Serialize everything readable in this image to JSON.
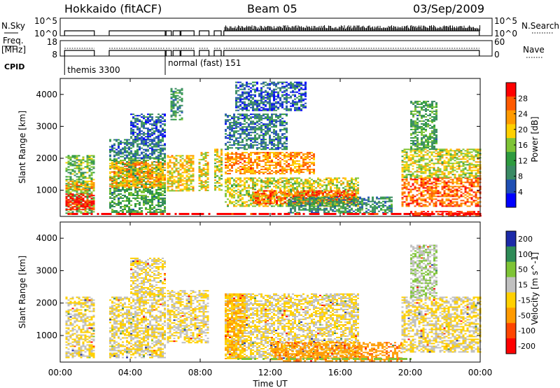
{
  "header": {
    "station": "Hokkaido (fitACF)",
    "beam": "Beam 05",
    "date": "03/Sep/2009"
  },
  "sky_panel": {
    "left_label": "N.Sky",
    "right_label": "N.Search",
    "left_ticks": [
      "10^5",
      "10^0"
    ],
    "right_ticks": [
      "10^5",
      "10^0"
    ]
  },
  "freq_panel": {
    "left_label_1": "Freq.",
    "left_label_2": "[MHz]",
    "right_label": "Nave",
    "left_ticks": [
      "18",
      "8"
    ],
    "right_ticks": [
      "60",
      "0"
    ]
  },
  "cpid_panel": {
    "label": "CPID",
    "modes": [
      {
        "name": "themis 3300",
        "start_hour": 0.25
      },
      {
        "name": "normal (fast) 151",
        "start_hour": 6.0
      }
    ]
  },
  "operation": {
    "intervals": [
      [
        0.25,
        1.95
      ],
      [
        2.8,
        6.0
      ],
      [
        6.05,
        6.35
      ],
      [
        6.45,
        6.85
      ],
      [
        6.9,
        7.65
      ],
      [
        7.95,
        8.5
      ],
      [
        8.8,
        9.2
      ],
      [
        9.35,
        23.95
      ]
    ]
  },
  "colors": {
    "power": [
      "#0000ff",
      "#1f4fb4",
      "#3a8a64",
      "#2e9b3f",
      "#7ec436",
      "#ffd000",
      "#ff9a00",
      "#ff5a00",
      "#ff0000"
    ],
    "velocity": [
      "#1c2aa8",
      "#2e8b57",
      "#7ec436",
      "#c0c0c0",
      "#ffd000",
      "#ff9a00",
      "#ff4500",
      "#ff0000"
    ],
    "grey": "#c0c0c0"
  },
  "chart_data": [
    {
      "type": "heatmap",
      "name": "power",
      "ylabel": "Slant Range [km]",
      "xlabel": "Time UT",
      "x_ticks": [
        "00:00",
        "04:00",
        "08:00",
        "12:00",
        "16:00",
        "20:00",
        "00:00"
      ],
      "x_range_hours": [
        0,
        24
      ],
      "y_ticks": [
        "1000",
        "2000",
        "3000",
        "4000"
      ],
      "ylim_km": [
        180,
        4500
      ],
      "colorbar": {
        "label": "Power [dB]",
        "range": [
          0,
          32
        ],
        "ticks": [
          "4",
          "8",
          "12",
          "16",
          "20",
          "24",
          "28"
        ]
      },
      "regions": [
        {
          "x": [
            0.3,
            1.9
          ],
          "y": [
            300,
            2100
          ],
          "value": 14
        },
        {
          "x": [
            0.3,
            1.9
          ],
          "y": [
            400,
            900
          ],
          "value": 30
        },
        {
          "x": [
            0.3,
            1.9
          ],
          "y": [
            1000,
            1300
          ],
          "value": 22
        },
        {
          "x": [
            2.8,
            6.0
          ],
          "y": [
            300,
            2000
          ],
          "value": 12
        },
        {
          "x": [
            2.8,
            6.0
          ],
          "y": [
            1100,
            1900
          ],
          "value": 22
        },
        {
          "x": [
            2.8,
            6.0
          ],
          "y": [
            2000,
            2600
          ],
          "value": 8
        },
        {
          "x": [
            4.0,
            6.0
          ],
          "y": [
            2600,
            3400
          ],
          "value": 6
        },
        {
          "x": [
            6.1,
            7.6
          ],
          "y": [
            1000,
            2100
          ],
          "value": 20
        },
        {
          "x": [
            6.3,
            7.0
          ],
          "y": [
            3200,
            4200
          ],
          "value": 10
        },
        {
          "x": [
            7.9,
            8.5
          ],
          "y": [
            1000,
            2200
          ],
          "value": 20
        },
        {
          "x": [
            8.8,
            9.2
          ],
          "y": [
            1000,
            2300
          ],
          "value": 18
        },
        {
          "x": [
            9.4,
            14.5
          ],
          "y": [
            1500,
            2200
          ],
          "value": 24
        },
        {
          "x": [
            9.4,
            17.0
          ],
          "y": [
            500,
            1400
          ],
          "value": 18
        },
        {
          "x": [
            11.0,
            17.0
          ],
          "y": [
            600,
            1000
          ],
          "value": 26
        },
        {
          "x": [
            13.0,
            19.0
          ],
          "y": [
            300,
            800
          ],
          "value": 10
        },
        {
          "x": [
            9.4,
            13.0
          ],
          "y": [
            2300,
            3400
          ],
          "value": 8
        },
        {
          "x": [
            10.0,
            14.0
          ],
          "y": [
            3500,
            4400
          ],
          "value": 6
        },
        {
          "x": [
            19.5,
            24.0
          ],
          "y": [
            500,
            1400
          ],
          "value": 26
        },
        {
          "x": [
            19.5,
            24.0
          ],
          "y": [
            1400,
            2300
          ],
          "value": 18
        },
        {
          "x": [
            20.0,
            21.5
          ],
          "y": [
            2300,
            3800
          ],
          "value": 12
        },
        {
          "x": [
            20.0,
            24.0
          ],
          "y": [
            200,
            350
          ],
          "value": 30
        }
      ]
    },
    {
      "type": "heatmap",
      "name": "velocity",
      "ylabel": "Slant Range [km]",
      "xlabel": "Time UT",
      "x_ticks": [
        "00:00",
        "04:00",
        "08:00",
        "12:00",
        "16:00",
        "20:00",
        "00:00"
      ],
      "x_range_hours": [
        0,
        24
      ],
      "y_ticks": [
        "1000",
        "2000",
        "3000",
        "4000"
      ],
      "ylim_km": [
        180,
        4500
      ],
      "colorbar": {
        "label": "Velocity [m s^-1]",
        "ticks": [
          "200",
          "100",
          "50",
          "15",
          "-15",
          "-50",
          "-100",
          "-200"
        ]
      },
      "regions": [
        {
          "x": [
            0.3,
            1.9
          ],
          "y": [
            300,
            2200
          ],
          "value": 0
        },
        {
          "x": [
            2.8,
            6.0
          ],
          "y": [
            300,
            2200
          ],
          "value": 0
        },
        {
          "x": [
            4.0,
            6.0
          ],
          "y": [
            2200,
            3400
          ],
          "value": 0
        },
        {
          "x": [
            6.1,
            8.5
          ],
          "y": [
            800,
            2400
          ],
          "value": 0
        },
        {
          "x": [
            9.4,
            17.0
          ],
          "y": [
            300,
            2300
          ],
          "value": 0
        },
        {
          "x": [
            12.0,
            19.5
          ],
          "y": [
            200,
            800
          ],
          "value": -60
        },
        {
          "x": [
            19.5,
            24.0
          ],
          "y": [
            500,
            2200
          ],
          "value": 0
        },
        {
          "x": [
            20.0,
            21.5
          ],
          "y": [
            2200,
            3800
          ],
          "value": 30
        },
        {
          "x": [
            9.4,
            10.5
          ],
          "y": [
            300,
            2300
          ],
          "value": -30
        }
      ]
    }
  ]
}
